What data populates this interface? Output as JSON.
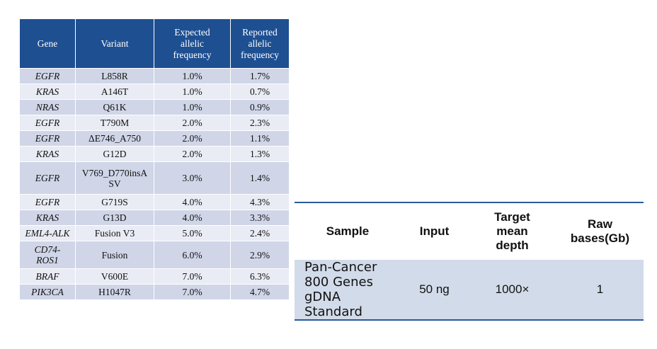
{
  "variant_table": {
    "headers": {
      "gene": "Gene",
      "variant": "Variant",
      "expected": [
        "Expected",
        "allelic",
        "frequency"
      ],
      "reported": [
        "Reported",
        "allelic",
        "frequency"
      ]
    },
    "rows": [
      {
        "gene": [
          "EGFR"
        ],
        "variant": [
          "L858R"
        ],
        "expected": "1.0%",
        "reported": "1.7%"
      },
      {
        "gene": [
          "KRAS"
        ],
        "variant": [
          "A146T"
        ],
        "expected": "1.0%",
        "reported": "0.7%"
      },
      {
        "gene": [
          "NRAS"
        ],
        "variant": [
          "Q61K"
        ],
        "expected": "1.0%",
        "reported": "0.9%"
      },
      {
        "gene": [
          "EGFR"
        ],
        "variant": [
          "T790M"
        ],
        "expected": "2.0%",
        "reported": "2.3%"
      },
      {
        "gene": [
          "EGFR"
        ],
        "variant": [
          "ΔE746_A750"
        ],
        "expected": "2.0%",
        "reported": "1.1%"
      },
      {
        "gene": [
          "KRAS"
        ],
        "variant": [
          "G12D"
        ],
        "expected": "2.0%",
        "reported": "1.3%"
      },
      {
        "gene": [
          "EGFR"
        ],
        "variant": [
          "V769_D770insA",
          "SV"
        ],
        "expected": "3.0%",
        "reported": "1.4%"
      },
      {
        "gene": [
          "EGFR"
        ],
        "variant": [
          "G719S"
        ],
        "expected": "4.0%",
        "reported": "4.3%"
      },
      {
        "gene": [
          "KRAS"
        ],
        "variant": [
          "G13D"
        ],
        "expected": "4.0%",
        "reported": "3.3%"
      },
      {
        "gene": [
          "EML4-ALK"
        ],
        "variant": [
          "Fusion V3"
        ],
        "expected": "5.0%",
        "reported": "2.4%"
      },
      {
        "gene": [
          "CD74-",
          "ROS1"
        ],
        "variant": [
          "Fusion"
        ],
        "expected": "6.0%",
        "reported": "2.9%"
      },
      {
        "gene": [
          "BRAF"
        ],
        "variant": [
          "V600E"
        ],
        "expected": "7.0%",
        "reported": "6.3%"
      },
      {
        "gene": [
          "PIK3CA"
        ],
        "variant": [
          "H1047R"
        ],
        "expected": "7.0%",
        "reported": "4.7%"
      }
    ]
  },
  "sample_table": {
    "headers": {
      "sample": [
        "Sample"
      ],
      "input": [
        "Input"
      ],
      "depth": [
        "Target",
        "mean",
        "depth"
      ],
      "bases": [
        "Raw",
        "bases(Gb)"
      ]
    },
    "row": {
      "sample": [
        "Pan-Cancer",
        "800 Genes",
        "gDNA Standard"
      ],
      "input": "50 ng",
      "depth": "1000×",
      "bases": "1"
    }
  }
}
